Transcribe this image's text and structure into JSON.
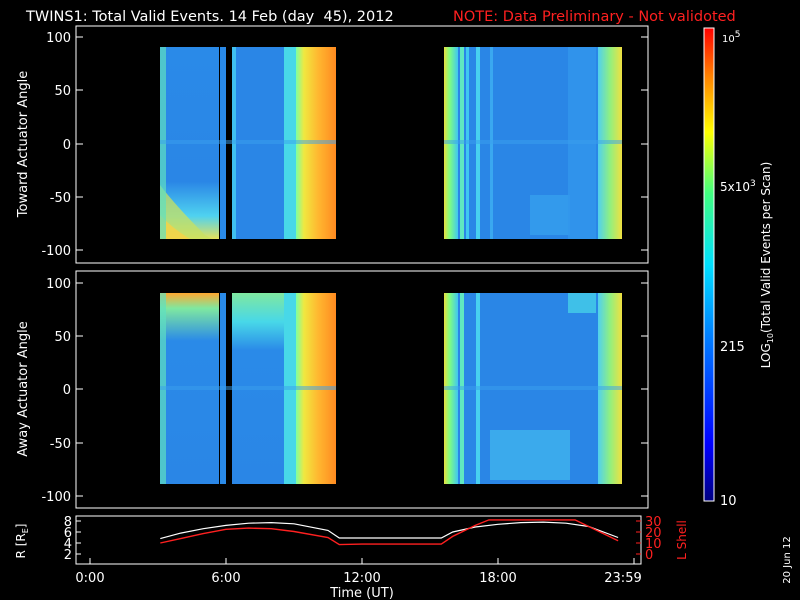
{
  "title": {
    "main": "TWINS1: Total Valid Events. 14 Feb (day  45), 2012",
    "note": "NOTE: Data Preliminary - Not validoted",
    "note_color": "#ff2020"
  },
  "stamp": "20 Jun 12",
  "chart_data": [
    {
      "type": "heatmap",
      "ylabel": "Toward Actuator Angle",
      "ylim": [
        -110,
        110
      ],
      "yticks": [
        "100",
        "50",
        "0",
        "-50",
        "-100"
      ],
      "angle_range": [
        -88,
        90
      ],
      "time_blocks": [
        {
          "start": "3:20",
          "end": "5:50"
        },
        {
          "start": "6:00",
          "end": "6:10"
        },
        {
          "start": "6:15",
          "end": "9:25"
        },
        {
          "start": "15:30",
          "end": "23:20"
        }
      ]
    },
    {
      "type": "heatmap",
      "ylabel": "Away Actuator Angle",
      "ylim": [
        -110,
        110
      ],
      "yticks": [
        "100",
        "50",
        "0",
        "-50",
        "-100"
      ],
      "angle_range": [
        -88,
        90
      ],
      "time_blocks": [
        {
          "start": "3:20",
          "end": "5:50"
        },
        {
          "start": "6:00",
          "end": "6:10"
        },
        {
          "start": "6:15",
          "end": "9:25"
        },
        {
          "start": "15:30",
          "end": "23:20"
        }
      ]
    },
    {
      "type": "line",
      "xlabel": "Time (UT)",
      "xticks": [
        "0:00",
        "6:00",
        "12:00",
        "18:00",
        "23:59"
      ],
      "ylabel_left": "R [RE]",
      "ylabel_left_sub": "E",
      "yticks_left": [
        "8",
        "6",
        "4",
        "2"
      ],
      "ylabel_right": "L Shell",
      "yticks_right": [
        "30",
        "20",
        "10",
        "0"
      ],
      "series": [
        {
          "color": "#ffffff",
          "x": [
            3.1,
            4.0,
            5.0,
            6.0,
            7.0,
            8.0,
            9.0,
            10.5,
            11.0,
            12.0,
            13.0,
            14.0,
            15.5,
            16.0,
            17.0,
            18.0,
            19.0,
            20.0,
            21.0,
            22.0,
            23.3
          ],
          "y": [
            4.8,
            5.8,
            6.6,
            7.2,
            7.6,
            7.7,
            7.5,
            6.3,
            4.9,
            4.9,
            4.9,
            4.9,
            4.9,
            6.0,
            6.9,
            7.4,
            7.7,
            7.8,
            7.6,
            7.0,
            5.0
          ]
        },
        {
          "color": "#ff2020",
          "x": [
            3.1,
            4.0,
            5.0,
            6.0,
            7.0,
            8.0,
            9.0,
            10.5,
            11.0,
            12.0,
            13.0,
            14.0,
            15.5,
            16.0,
            17.0,
            17.6,
            21.4,
            22.0,
            23.3
          ],
          "y": [
            10,
            14,
            18.5,
            22.5,
            23.5,
            23,
            20.5,
            15,
            8.5,
            9,
            9,
            9,
            9,
            16,
            26,
            31,
            31,
            25,
            12
          ]
        }
      ]
    }
  ],
  "colorbar": {
    "title": "LOG10(Total Valid Events per Scan)",
    "title_base": "LOG",
    "title_sub": "10",
    "title_rest": "(Total Valid Events per Scan)",
    "ticks": [
      {
        "mant": "10",
        "exp": "5"
      },
      {
        "mant": "5x10",
        "exp": "3"
      },
      {
        "mant": "215",
        "exp": ""
      },
      {
        "mant": "10",
        "exp": ""
      }
    ]
  }
}
